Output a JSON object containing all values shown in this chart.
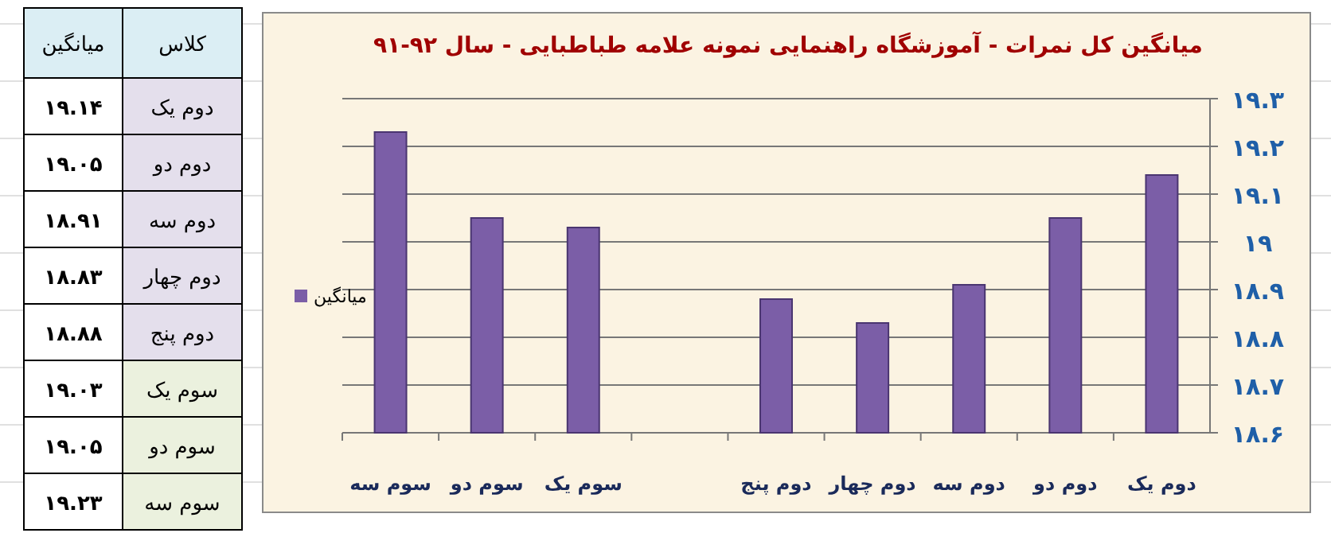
{
  "chart_data": [
    {
      "type": "other",
      "annotations": [
        "کلاس",
        "میانگین",
        "دوم یک",
        "۱۹.۱۴",
        "دوم دو",
        "۱۹.۰۵",
        "دوم سه",
        "۱۸.۹۱",
        "دوم چهار",
        "۱۸.۸۳",
        "دوم پنج",
        "۱۸.۸۸",
        "سوم یک",
        "۱۹.۰۳",
        "سوم دو",
        "۱۹.۰۵",
        "سوم سه",
        "۱۹.۲۳"
      ]
    },
    {
      "type": "bar",
      "title": "میانگین کل نمرات  -  آموزشگاه راهنمایی نمونه علامه طباطبایی  -  سال ۹۲-۹۱",
      "categories": [
        "سوم سه",
        "سوم دو",
        "سوم یک",
        null,
        "دوم پنج",
        "دوم چهار",
        "دوم سه",
        "دوم دو",
        "دوم یک"
      ],
      "series": [
        {
          "name": "میانگین",
          "color": "#7b5ea7",
          "values": [
            19.23,
            19.05,
            19.03,
            null,
            18.88,
            18.83,
            18.91,
            19.05,
            19.14
          ]
        }
      ],
      "ylim": [
        18.6,
        19.3
      ],
      "yticks": [
        {
          "value": 18.6,
          "label": "۱۸.۶"
        },
        {
          "value": 18.7,
          "label": "۱۸.۷"
        },
        {
          "value": 18.8,
          "label": "۱۸.۸"
        },
        {
          "value": 18.9,
          "label": "۱۸.۹"
        },
        {
          "value": 19,
          "label": "۱۹"
        },
        {
          "value": 19.1,
          "label": "۱۹.۱"
        },
        {
          "value": 19.2,
          "label": "۱۹.۲"
        },
        {
          "value": 19.3,
          "label": "۱۹.۳"
        }
      ],
      "grid": "y",
      "legend": "left"
    }
  ]
}
